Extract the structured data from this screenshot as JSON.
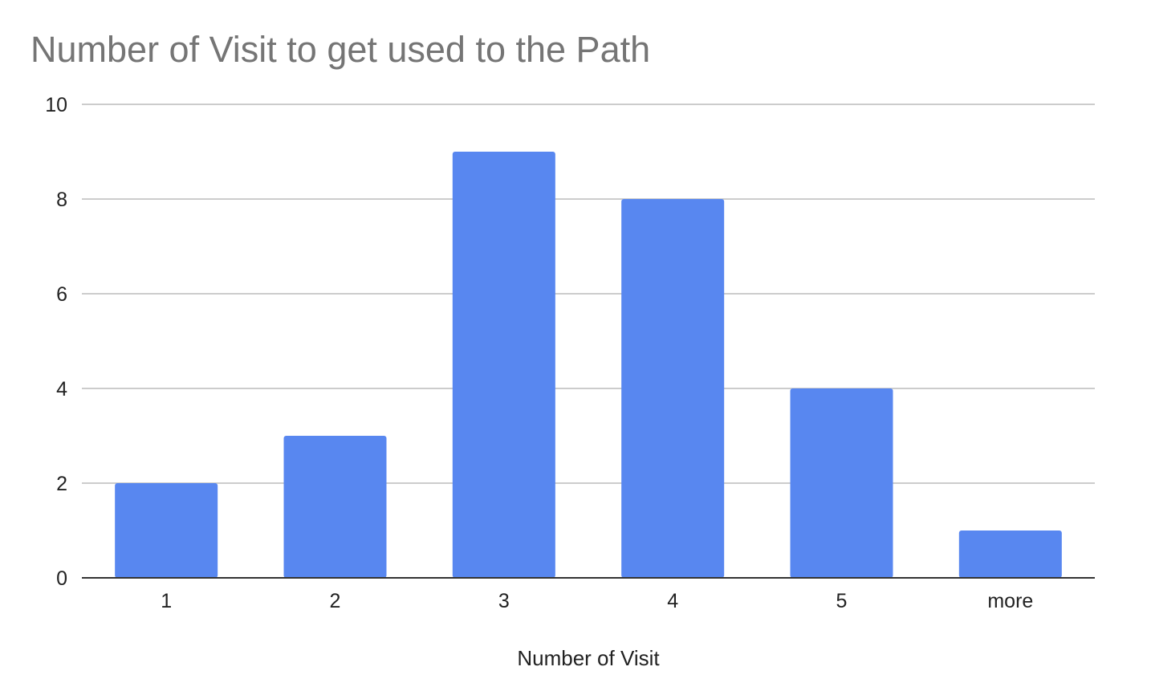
{
  "chart_data": {
    "type": "bar",
    "title": "Number of Visit to get used to the Path",
    "xlabel": "Number of Visit",
    "ylabel": "",
    "categories": [
      "1",
      "2",
      "3",
      "4",
      "5",
      "more"
    ],
    "values": [
      2,
      3,
      9,
      8,
      4,
      1
    ],
    "ylim": [
      0,
      10
    ],
    "yticks": [
      0,
      2,
      4,
      6,
      8,
      10
    ],
    "grid": true,
    "legend": "none",
    "bar_color": "#5887f0",
    "gridline_color": "#cccccc",
    "axis_color": "#333333",
    "title_color": "#757575"
  }
}
